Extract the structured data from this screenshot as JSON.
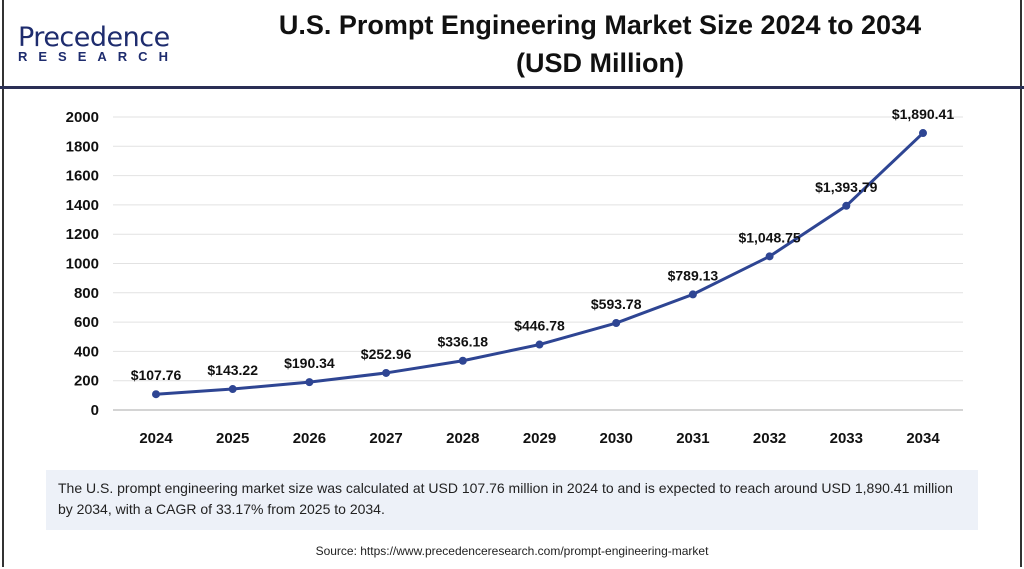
{
  "header": {
    "logo_main": "Precedence",
    "logo_sub": "RESEARCH",
    "title_line1": "U.S. Prompt Engineering Market Size 2024 to 2034",
    "title_line2": "(USD Million)"
  },
  "chart_data": {
    "type": "line",
    "categories": [
      "2024",
      "2025",
      "2026",
      "2027",
      "2028",
      "2029",
      "2030",
      "2031",
      "2032",
      "2033",
      "2034"
    ],
    "values": [
      107.76,
      143.22,
      190.34,
      252.96,
      336.18,
      446.78,
      593.78,
      789.13,
      1048.75,
      1393.79,
      1890.41
    ],
    "labels": [
      "$107.76",
      "$143.22",
      "$190.34",
      "$252.96",
      "$336.18",
      "$446.78",
      "$593.78",
      "$789.13",
      "$1,048.75",
      "$1,393.79",
      "$1,890.41"
    ],
    "ylim": [
      0,
      2000
    ],
    "yticks": [
      "0",
      "200",
      "400",
      "600",
      "800",
      "1000",
      "1200",
      "1400",
      "1600",
      "1800",
      "2000"
    ],
    "grid": true,
    "line_color": "#2e4593"
  },
  "note": "The U.S. prompt engineering market size was calculated at USD 107.76 million in 2024 to and is expected to reach around USD 1,890.41 million by 2034, with a CAGR of 33.17% from 2025 to 2034.",
  "source": "Source: https://www.precedenceresearch.com/prompt-engineering-market"
}
